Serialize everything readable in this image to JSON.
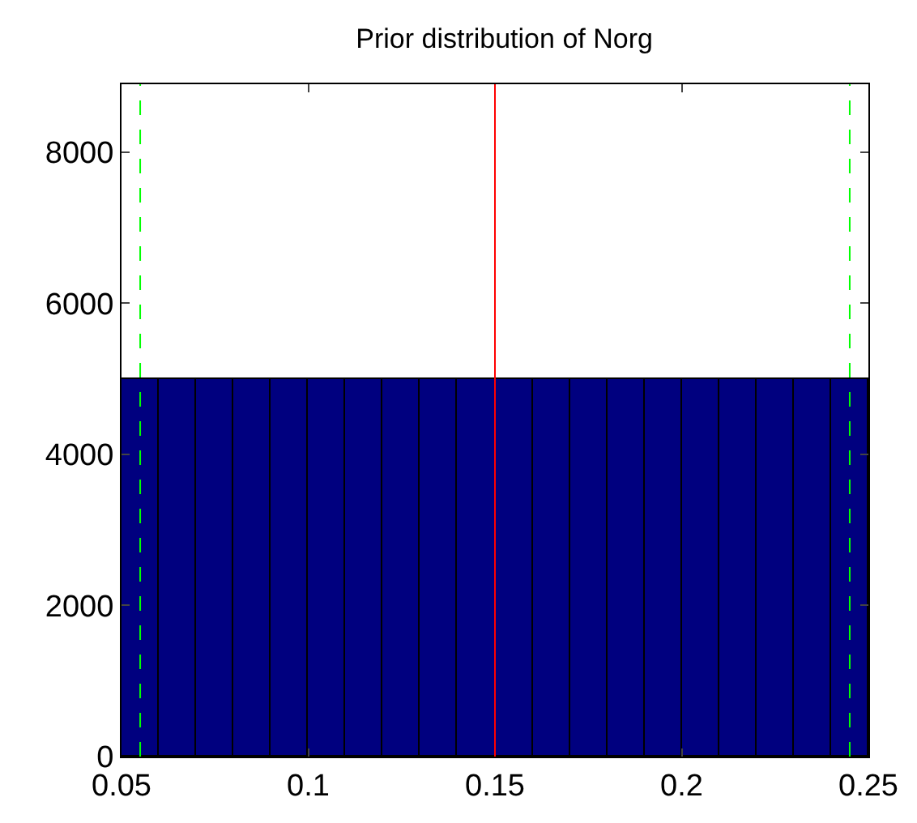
{
  "chart_data": {
    "type": "histogram",
    "title": "Prior distribution of Norg",
    "bins": [
      0.05,
      0.06,
      0.07,
      0.08,
      0.09,
      0.1,
      0.11,
      0.12,
      0.13,
      0.14,
      0.15,
      0.16,
      0.17,
      0.18,
      0.19,
      0.2,
      0.21,
      0.22,
      0.23,
      0.24,
      0.25
    ],
    "values": [
      5000,
      5000,
      5000,
      5000,
      5000,
      5000,
      5000,
      5000,
      5000,
      5000,
      5000,
      5000,
      5000,
      5000,
      5000,
      5000,
      5000,
      5000,
      5000,
      5000
    ],
    "color": "#00007f",
    "xlim": [
      0.05,
      0.25
    ],
    "xticks": [
      0.05,
      0.1,
      0.15,
      0.2,
      0.25
    ],
    "ylim": [
      0,
      8900
    ],
    "yticks": [
      0,
      2000,
      4000,
      6000,
      8000
    ],
    "ref_lines": [
      {
        "axis": "x",
        "value": 0.15,
        "color": "#ff0000",
        "line_style": "solid"
      },
      {
        "axis": "x",
        "value": 0.055,
        "color": "#00ff00",
        "line_style": "dashed"
      },
      {
        "axis": "x",
        "value": 0.245,
        "color": "#00ff00",
        "line_style": "dashed"
      }
    ]
  }
}
